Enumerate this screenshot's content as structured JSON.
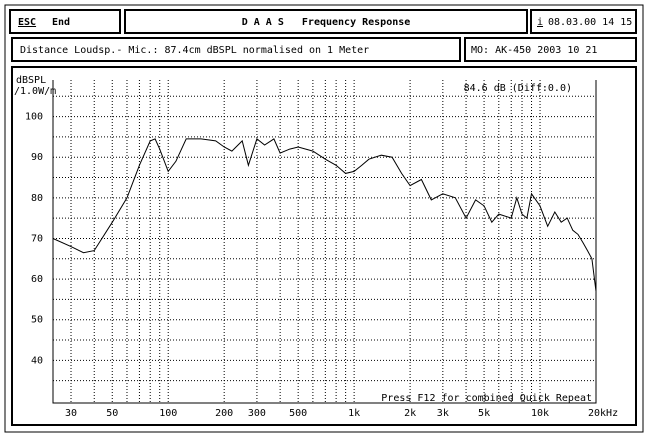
{
  "header": {
    "esc": "ESC",
    "end": "End",
    "title": "D A A S   Frequency Response",
    "info_key": "i",
    "datetime": "08.03.00 14 15",
    "measurement": "Distance Loudsp.- Mic.: 87.4cm dBSPL normalised on 1 Meter",
    "model": "MO: AK-450 2003 10 21"
  },
  "chart_data": {
    "type": "line",
    "ylabel": "dBSPL",
    "ylabel2": "/1.0W/m",
    "annotation": "84.6 dB (Diff:0.0)",
    "footer": "Press F12 for combined Quick Repeat",
    "log_x": true,
    "grid": true,
    "color": "#000000",
    "xlim": [
      24,
      20000
    ],
    "ylim": [
      29.5,
      109
    ],
    "xticks": [
      30,
      50,
      100,
      200,
      300,
      500,
      {
        "value": 1000,
        "label": "1k"
      },
      {
        "value": 2000,
        "label": "2k"
      },
      {
        "value": 3000,
        "label": "3k"
      },
      {
        "value": 5000,
        "label": "5k"
      },
      {
        "value": 10000,
        "label": "10k"
      },
      {
        "value": 20000,
        "label": "20kHz"
      }
    ],
    "xminor": [
      40,
      60,
      70,
      80,
      90,
      400,
      600,
      700,
      800,
      900,
      4000,
      6000,
      7000,
      8000,
      9000
    ],
    "yticks": [
      40,
      50,
      60,
      70,
      80,
      90,
      100
    ],
    "yminor": [
      35,
      45,
      55,
      65,
      75,
      85,
      95,
      105
    ],
    "x": [
      24,
      30,
      35,
      40,
      50,
      60,
      70,
      80,
      85,
      90,
      100,
      110,
      125,
      150,
      180,
      200,
      220,
      250,
      270,
      300,
      330,
      370,
      400,
      450,
      500,
      600,
      700,
      800,
      900,
      1000,
      1100,
      1200,
      1400,
      1600,
      1800,
      2000,
      2300,
      2600,
      3000,
      3500,
      4000,
      4500,
      5000,
      5500,
      6000,
      7000,
      7500,
      8000,
      8500,
      9000,
      10000,
      11000,
      12000,
      13000,
      14000,
      15000,
      16000,
      17000,
      18000,
      19000,
      20000
    ],
    "series": [
      {
        "values": [
          70,
          68,
          66.5,
          67,
          74,
          80,
          88,
          94,
          94.5,
          92,
          86.5,
          89,
          94.5,
          94.5,
          94,
          92.5,
          91.5,
          94,
          88,
          94.5,
          93,
          94.5,
          91,
          92,
          92.5,
          91.5,
          89.5,
          88,
          86,
          86.5,
          88,
          89.5,
          90.5,
          90,
          86,
          83,
          84.5,
          79.5,
          81,
          80,
          75,
          79.5,
          78,
          74,
          76,
          75,
          80,
          76,
          75,
          81,
          78,
          73,
          76.5,
          74,
          75,
          72,
          71,
          69,
          67,
          65,
          57
        ]
      }
    ]
  }
}
